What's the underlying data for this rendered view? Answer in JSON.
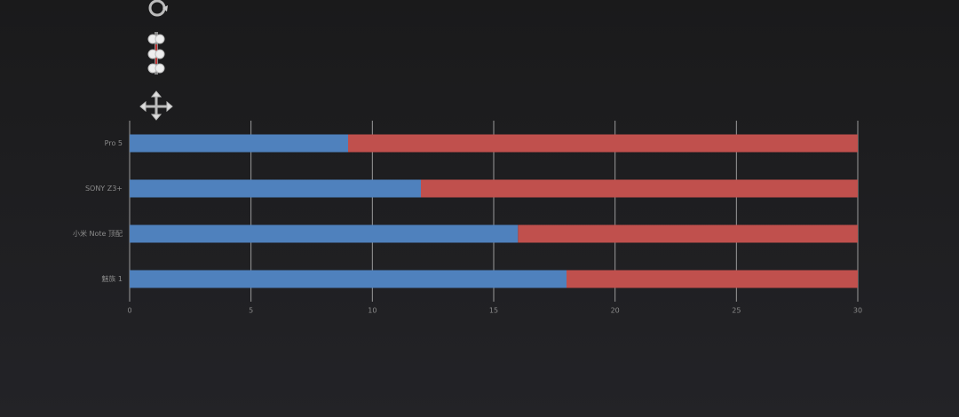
{
  "chart_data": {
    "type": "bar",
    "orientation": "horizontal",
    "stacked": true,
    "categories": [
      "Pro 5",
      "SONY Z3+",
      "小米 Note 顶配",
      "魅族 1"
    ],
    "series": [
      {
        "color": "#4f81bd",
        "values": [
          9,
          12,
          16,
          18
        ]
      },
      {
        "color": "#c0504d",
        "values": [
          21,
          18,
          14,
          12
        ]
      }
    ],
    "xlim": [
      0,
      30
    ],
    "xticks": [
      0,
      5,
      10,
      15,
      20,
      25,
      30
    ],
    "grid": true
  }
}
